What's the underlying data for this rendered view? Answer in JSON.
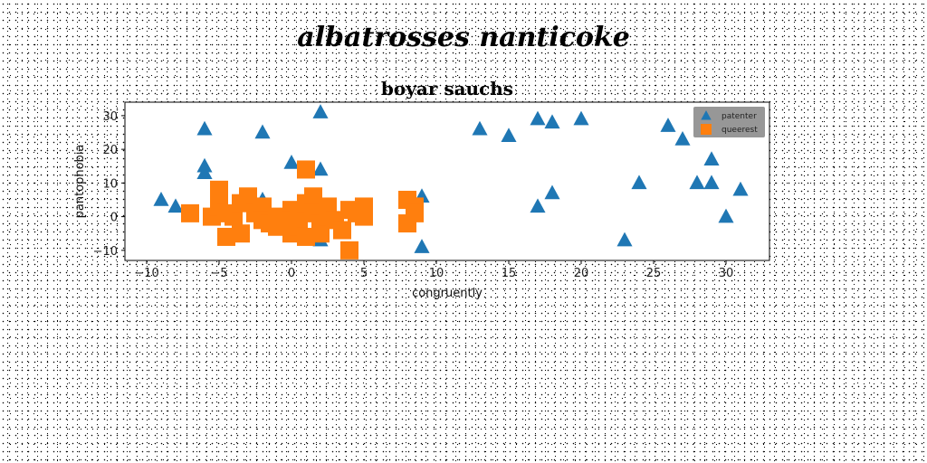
{
  "suptitle": "albatrosses nanticoke",
  "chart_data": {
    "type": "scatter",
    "title": "boyar sauchs",
    "xlabel": "congruently",
    "ylabel": "pantophobia",
    "xlim": [
      -11.5,
      33
    ],
    "ylim": [
      -13,
      34
    ],
    "xticks": [
      -10,
      -5,
      0,
      5,
      10,
      15,
      20,
      25,
      30
    ],
    "xtick_labels": [
      "−10",
      "−5",
      "0",
      "5",
      "10",
      "15",
      "20",
      "25",
      "30"
    ],
    "yticks": [
      -10,
      0,
      10,
      20,
      30
    ],
    "ytick_labels": [
      "−10",
      "0",
      "10",
      "20",
      "30"
    ],
    "grid": false,
    "legend_position": "top-right",
    "series": [
      {
        "name": "patenter",
        "marker": "triangle",
        "color": "#1f77b4",
        "points": [
          [
            -9,
            5
          ],
          [
            -8,
            3
          ],
          [
            -6,
            26
          ],
          [
            -6,
            15
          ],
          [
            -6,
            13
          ],
          [
            -2,
            25
          ],
          [
            -2,
            5
          ],
          [
            0,
            16
          ],
          [
            2,
            31
          ],
          [
            2,
            14
          ],
          [
            2,
            -7
          ],
          [
            9,
            6
          ],
          [
            9,
            -9
          ],
          [
            13,
            26
          ],
          [
            15,
            24
          ],
          [
            17,
            29
          ],
          [
            17,
            3
          ],
          [
            18,
            28
          ],
          [
            18,
            7
          ],
          [
            20,
            29
          ],
          [
            23,
            -7
          ],
          [
            24,
            10
          ],
          [
            26,
            27
          ],
          [
            27,
            23
          ],
          [
            28,
            10
          ],
          [
            29,
            17
          ],
          [
            29,
            10
          ],
          [
            30,
            0
          ],
          [
            31,
            8
          ]
        ]
      },
      {
        "name": "queerest",
        "marker": "square",
        "color": "#ff7f0e",
        "points": [
          [
            -7,
            1
          ],
          [
            -5.5,
            0
          ],
          [
            -5,
            8
          ],
          [
            -5,
            3
          ],
          [
            -4.5,
            1
          ],
          [
            -4.5,
            -6
          ],
          [
            -4,
            0
          ],
          [
            -3.5,
            4
          ],
          [
            -3.5,
            -5
          ],
          [
            -3,
            6
          ],
          [
            -2.5,
            1
          ],
          [
            -2,
            3
          ],
          [
            -2,
            -1
          ],
          [
            -1.5,
            -2
          ],
          [
            -1,
            0
          ],
          [
            -1,
            -3
          ],
          [
            0,
            2
          ],
          [
            0,
            -1
          ],
          [
            0,
            -5
          ],
          [
            0.5,
            0
          ],
          [
            0.5,
            -3
          ],
          [
            1,
            14
          ],
          [
            1,
            4
          ],
          [
            1,
            -6
          ],
          [
            1.5,
            6
          ],
          [
            1.5,
            1
          ],
          [
            2,
            -2
          ],
          [
            2,
            -5
          ],
          [
            2.5,
            3
          ],
          [
            2.5,
            0
          ],
          [
            3,
            -1
          ],
          [
            3.5,
            -4
          ],
          [
            4,
            2
          ],
          [
            4,
            -10
          ],
          [
            4.5,
            1
          ],
          [
            5,
            3
          ],
          [
            5,
            0
          ],
          [
            8,
            5
          ],
          [
            8,
            -2
          ],
          [
            8.5,
            3
          ],
          [
            8.5,
            1
          ]
        ]
      }
    ]
  }
}
